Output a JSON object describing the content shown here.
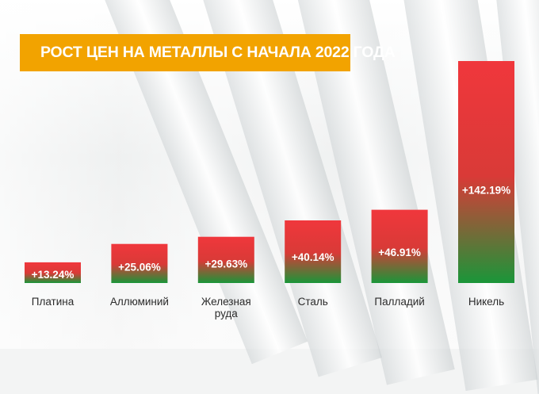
{
  "chart_data": {
    "type": "bar",
    "title": "РОСТ ЦЕН НА МЕТАЛЛЫ С НАЧАЛА 2022 ГОДА",
    "xlabel": "",
    "ylabel": "",
    "ylim": [
      0,
      150
    ],
    "grid": false,
    "legend": "none",
    "categories": [
      "Платина",
      "Аллюминий",
      "Железная руда",
      "Сталь",
      "Палладий",
      "Никель"
    ],
    "category_lines": [
      [
        "Платина"
      ],
      [
        "Аллюминий"
      ],
      [
        "Железная",
        "руда"
      ],
      [
        "Сталь"
      ],
      [
        "Палладий"
      ],
      [
        "Никель"
      ]
    ],
    "values": [
      13.24,
      25.06,
      29.63,
      40.14,
      46.91,
      142.19
    ],
    "data_labels": [
      "+13.24%",
      "+25.06%",
      "+29.63%",
      "+40.14%",
      "+46.91%",
      "+142.19%"
    ],
    "colors": {
      "bar_top": "#f0373c",
      "bar_bottom": "#1a9639",
      "title_background": "#f2a300",
      "title_text": "#ffffff",
      "value_label": "#ffffff",
      "category_label": "#2b2b2b"
    }
  }
}
